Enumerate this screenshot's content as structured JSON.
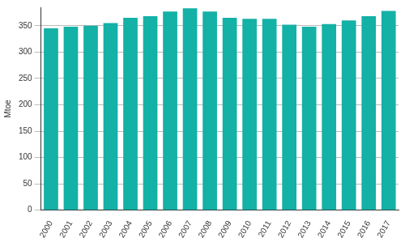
{
  "chart_data": {
    "type": "bar",
    "y_label": "Mtoe",
    "categories": [
      "2000",
      "2001",
      "2002",
      "2003",
      "2004",
      "2005",
      "2006",
      "2007",
      "2008",
      "2009",
      "2010",
      "2011",
      "2012",
      "2013",
      "2014",
      "2015",
      "2016",
      "2017"
    ],
    "values": [
      345,
      348,
      350,
      355,
      365,
      368,
      377,
      383,
      377,
      365,
      363,
      363,
      352,
      348,
      353,
      360,
      368,
      378
    ],
    "color": "#13b1a6",
    "ylim": [
      0,
      385
    ],
    "yticks": [
      0,
      50,
      100,
      150,
      200,
      250,
      300,
      350
    ],
    "grid": true
  }
}
